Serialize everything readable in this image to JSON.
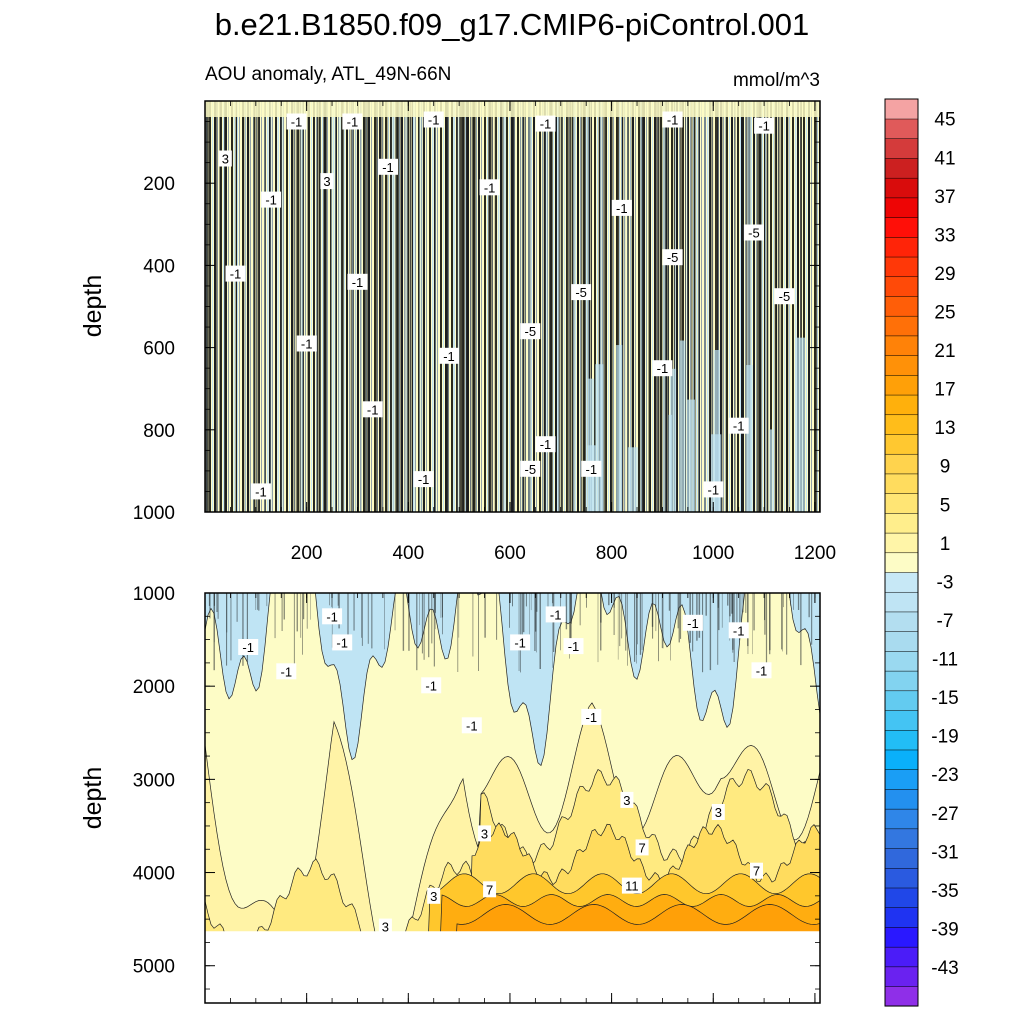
{
  "chart_data": {
    "type": "heatmap",
    "title": "b.e21.B1850.f09_g17.CMIP6-piControl.001",
    "left_subtitle": "AOU anomaly, ATL_49N-66N",
    "right_subtitle": "mmol/m^3",
    "colorbar": {
      "levels": [
        -45,
        -43,
        -41,
        -39,
        -37,
        -35,
        -33,
        -31,
        -29,
        -27,
        -25,
        -23,
        -21,
        -19,
        -17,
        -15,
        -13,
        -11,
        -9,
        -7,
        -5,
        -3,
        -1,
        1,
        3,
        5,
        7,
        9,
        11,
        13,
        15,
        17,
        19,
        21,
        23,
        25,
        27,
        29,
        31,
        33,
        35,
        37,
        39,
        41,
        43,
        45
      ],
      "tick_labels": [
        "45",
        "41",
        "37",
        "33",
        "29",
        "25",
        "21",
        "17",
        "13",
        "9",
        "5",
        "1",
        "-3",
        "-7",
        "-11",
        "-15",
        "-19",
        "-23",
        "-27",
        "-31",
        "-35",
        "-39",
        "-43"
      ],
      "colors_low_to_high": [
        "#8f2fe8",
        "#6a22f0",
        "#4b1cf8",
        "#2a18ff",
        "#1f33f2",
        "#2047e8",
        "#2a5ae0",
        "#3068dc",
        "#3377e0",
        "#2f86e8",
        "#2390ef",
        "#1a9ef5",
        "#0ab0fa",
        "#22bdf6",
        "#44c4f3",
        "#63cbf0",
        "#82d3f0",
        "#9ad9f0",
        "#a9dbef",
        "#b3def0",
        "#bfe4f4",
        "#c7e8f6",
        "#fdfcc6",
        "#fff5a8",
        "#ffee8c",
        "#ffe574",
        "#ffdc5e",
        "#ffd34d",
        "#ffc830",
        "#ffbd1a",
        "#ffb00c",
        "#ffa008",
        "#ff9108",
        "#ff8208",
        "#ff7008",
        "#ff5e08",
        "#ff4a08",
        "#ff3808",
        "#ff2408",
        "#ff0f08",
        "#ee0505",
        "#d90c0c",
        "#cc2020",
        "#d43b3b",
        "#e05a5a",
        "#f4a3a3"
      ]
    },
    "panels": [
      {
        "name": "upper",
        "ylabel": "depth",
        "xlim": [
          0,
          1210
        ],
        "ylim": [
          0,
          1000
        ],
        "x_ticks": [
          200,
          400,
          600,
          800,
          1000,
          1200
        ],
        "x_tick_labels": [
          "200",
          "400",
          "600",
          "800",
          "1000",
          "1200"
        ],
        "y_ticks": [
          200,
          400,
          600,
          800,
          1000
        ],
        "y_tick_labels": [
          "200",
          "400",
          "600",
          "800",
          "1000"
        ],
        "contour_labels": [
          {
            "text": "-1",
            "x": 180,
            "y": 50
          },
          {
            "text": "-1",
            "x": 290,
            "y": 50
          },
          {
            "text": "-1",
            "x": 450,
            "y": 45
          },
          {
            "text": "-1",
            "x": 670,
            "y": 55
          },
          {
            "text": "-1",
            "x": 920,
            "y": 45
          },
          {
            "text": "-1",
            "x": 1100,
            "y": 60
          },
          {
            "text": "3",
            "x": 40,
            "y": 140
          },
          {
            "text": "3",
            "x": 240,
            "y": 195
          },
          {
            "text": "-1",
            "x": 130,
            "y": 240
          },
          {
            "text": "-1",
            "x": 360,
            "y": 160
          },
          {
            "text": "-1",
            "x": 560,
            "y": 210
          },
          {
            "text": "-1",
            "x": 820,
            "y": 260
          },
          {
            "text": "-5",
            "x": 1080,
            "y": 320
          },
          {
            "text": "-5",
            "x": 920,
            "y": 380
          },
          {
            "text": "-1",
            "x": 60,
            "y": 420
          },
          {
            "text": "-1",
            "x": 300,
            "y": 440
          },
          {
            "text": "-5",
            "x": 740,
            "y": 465
          },
          {
            "text": "-5",
            "x": 1140,
            "y": 475
          },
          {
            "text": "-5",
            "x": 640,
            "y": 560
          },
          {
            "text": "-1",
            "x": 200,
            "y": 590
          },
          {
            "text": "-1",
            "x": 480,
            "y": 620
          },
          {
            "text": "-1",
            "x": 900,
            "y": 650
          },
          {
            "text": "-1",
            "x": 330,
            "y": 750
          },
          {
            "text": "-1",
            "x": 1050,
            "y": 790
          },
          {
            "text": "-1",
            "x": 670,
            "y": 835
          },
          {
            "text": "-5",
            "x": 640,
            "y": 895
          },
          {
            "text": "-1",
            "x": 760,
            "y": 895
          },
          {
            "text": "-1",
            "x": 430,
            "y": 920
          },
          {
            "text": "-1",
            "x": 1000,
            "y": 945
          },
          {
            "text": "-1",
            "x": 110,
            "y": 950
          }
        ]
      },
      {
        "name": "lower",
        "ylabel": "depth",
        "xlim": [
          0,
          1210
        ],
        "ylim": [
          1000,
          5400
        ],
        "data_bottom_depth": 4630,
        "y_ticks": [
          1000,
          2000,
          3000,
          4000,
          5000
        ],
        "y_tick_labels": [
          "1000",
          "2000",
          "3000",
          "4000",
          "5000"
        ],
        "contour_labels": [
          {
            "text": "-1",
            "x": 250,
            "y": 1250
          },
          {
            "text": "-1",
            "x": 690,
            "y": 1230
          },
          {
            "text": "-1",
            "x": 960,
            "y": 1320
          },
          {
            "text": "-1",
            "x": 1050,
            "y": 1400
          },
          {
            "text": "-1",
            "x": 85,
            "y": 1580
          },
          {
            "text": "-1",
            "x": 270,
            "y": 1530
          },
          {
            "text": "-1",
            "x": 620,
            "y": 1530
          },
          {
            "text": "-1",
            "x": 725,
            "y": 1570
          },
          {
            "text": "-1",
            "x": 1095,
            "y": 1830
          },
          {
            "text": "-1",
            "x": 160,
            "y": 1840
          },
          {
            "text": "-1",
            "x": 445,
            "y": 1990
          },
          {
            "text": "-1",
            "x": 525,
            "y": 2420
          },
          {
            "text": "-1",
            "x": 760,
            "y": 2330
          },
          {
            "text": "3",
            "x": 830,
            "y": 3220
          },
          {
            "text": "3",
            "x": 1010,
            "y": 3350
          },
          {
            "text": "3",
            "x": 550,
            "y": 3580
          },
          {
            "text": "7",
            "x": 860,
            "y": 3730
          },
          {
            "text": "7",
            "x": 1085,
            "y": 3980
          },
          {
            "text": "11",
            "x": 840,
            "y": 4140
          },
          {
            "text": "7",
            "x": 560,
            "y": 4180
          },
          {
            "text": "3",
            "x": 450,
            "y": 4250
          },
          {
            "text": "3",
            "x": 355,
            "y": 4580
          }
        ]
      }
    ]
  }
}
